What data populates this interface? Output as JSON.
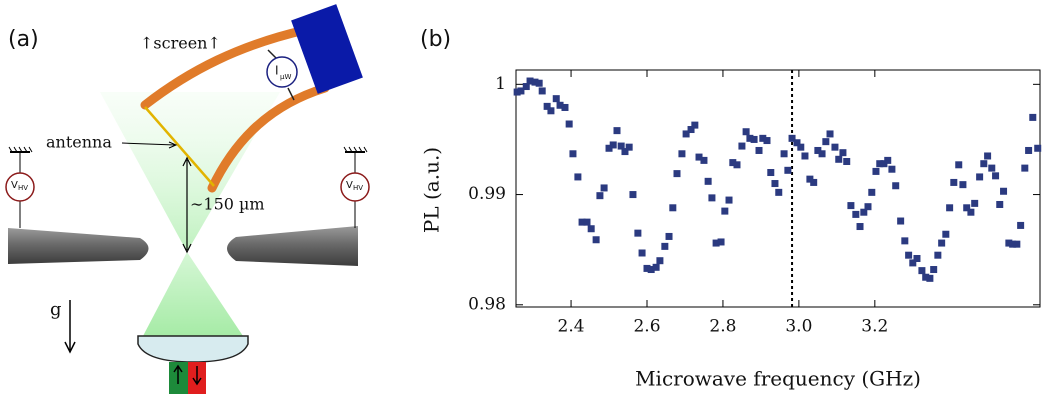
{
  "panel_a": {
    "label": "(a)",
    "screen": "↑screen↑",
    "antenna": "antenna",
    "distance": "∼150 µm",
    "gravity": "g",
    "voltage_symbol": "V",
    "voltage_subscript": "HV",
    "current_symbol": "I",
    "current_subscript": "µW"
  },
  "chart_data": {
    "type": "scatter",
    "panel_label": "(b)",
    "x_label": "Microwave frequency (GHz)",
    "y_label": "PL (a.u.)",
    "color": "#2b3a80",
    "xlim": [
      2.255,
      3.635
    ],
    "ylim": [
      0.9798,
      1.0013
    ],
    "xticks": [
      2.4,
      2.6,
      2.8,
      {
        "value": 3,
        "label": "3.0"
      },
      3.2
    ],
    "yticks": [
      0.98,
      0.99,
      1
    ],
    "vlines": [
      2.982
    ],
    "x": [
      2.258,
      2.268,
      2.282,
      2.292,
      2.305,
      2.316,
      2.324,
      2.337,
      2.347,
      2.361,
      2.371,
      2.384,
      2.395,
      2.405,
      2.418,
      2.429,
      2.442,
      2.453,
      2.466,
      2.476,
      2.487,
      2.5,
      2.511,
      2.521,
      2.532,
      2.542,
      2.553,
      2.563,
      2.576,
      2.587,
      2.6,
      2.611,
      2.624,
      2.634,
      2.647,
      2.658,
      2.668,
      2.679,
      2.692,
      2.703,
      2.716,
      2.726,
      2.737,
      2.75,
      2.761,
      2.771,
      2.782,
      2.795,
      2.805,
      2.816,
      2.826,
      2.837,
      2.85,
      2.861,
      2.871,
      2.882,
      2.895,
      2.905,
      2.916,
      2.926,
      2.937,
      2.947,
      2.961,
      2.971,
      2.982,
      2.995,
      3.005,
      3.016,
      3.029,
      3.039,
      3.05,
      3.061,
      3.071,
      3.082,
      3.095,
      3.105,
      3.116,
      3.126,
      3.137,
      3.15,
      3.161,
      3.171,
      3.182,
      3.192,
      3.203,
      3.213,
      3.224,
      3.234,
      3.245,
      3.255,
      3.268,
      3.279,
      3.289,
      3.3,
      3.311,
      3.324,
      3.334,
      3.345,
      3.355,
      3.366,
      3.376,
      3.387,
      3.397,
      3.408,
      3.421,
      3.432,
      3.442,
      3.453,
      3.463,
      3.476,
      3.487,
      3.497,
      3.508,
      3.518,
      3.529,
      3.539,
      3.553,
      3.563,
      3.574,
      3.584,
      3.595,
      3.605,
      3.616,
      3.629
    ],
    "values": [
      0.9993,
      0.9994,
      0.9998,
      1.0003,
      1.0002,
      1.0001,
      0.9994,
      0.998,
      0.9976,
      0.9987,
      0.9981,
      0.9979,
      0.9964,
      0.9937,
      0.9916,
      0.9875,
      0.9875,
      0.9869,
      0.9859,
      0.9899,
      0.9906,
      0.9942,
      0.9945,
      0.9958,
      0.9944,
      0.9939,
      0.9943,
      0.99,
      0.9865,
      0.9847,
      0.9833,
      0.9832,
      0.9834,
      0.984,
      0.9853,
      0.9862,
      0.9888,
      0.9919,
      0.9937,
      0.9955,
      0.9959,
      0.9963,
      0.9934,
      0.9931,
      0.9912,
      0.9897,
      0.9856,
      0.9857,
      0.9885,
      0.9895,
      0.9929,
      0.9927,
      0.9944,
      0.9957,
      0.9951,
      0.995,
      0.994,
      0.9951,
      0.9949,
      0.992,
      0.991,
      0.9902,
      0.9937,
      0.9922,
      0.9951,
      0.9947,
      0.9943,
      0.9935,
      0.9914,
      0.9911,
      0.994,
      0.9937,
      0.9948,
      0.9955,
      0.9943,
      0.9932,
      0.9938,
      0.993,
      0.989,
      0.9882,
      0.9871,
      0.9884,
      0.9889,
      0.9902,
      0.9921,
      0.9928,
      0.9928,
      0.9931,
      0.9923,
      0.9908,
      0.9876,
      0.9858,
      0.9845,
      0.9838,
      0.9842,
      0.9831,
      0.9825,
      0.9824,
      0.9832,
      0.9845,
      0.9856,
      0.9864,
      0.9888,
      0.9911,
      0.9927,
      0.9909,
      0.9888,
      0.9884,
      0.9892,
      0.9916,
      0.9928,
      0.9935,
      0.9924,
      0.9917,
      0.9891,
      0.9903,
      0.9856,
      0.9855,
      0.9855,
      0.9872,
      0.9924,
      0.994,
      0.997,
      0.9942
    ]
  }
}
